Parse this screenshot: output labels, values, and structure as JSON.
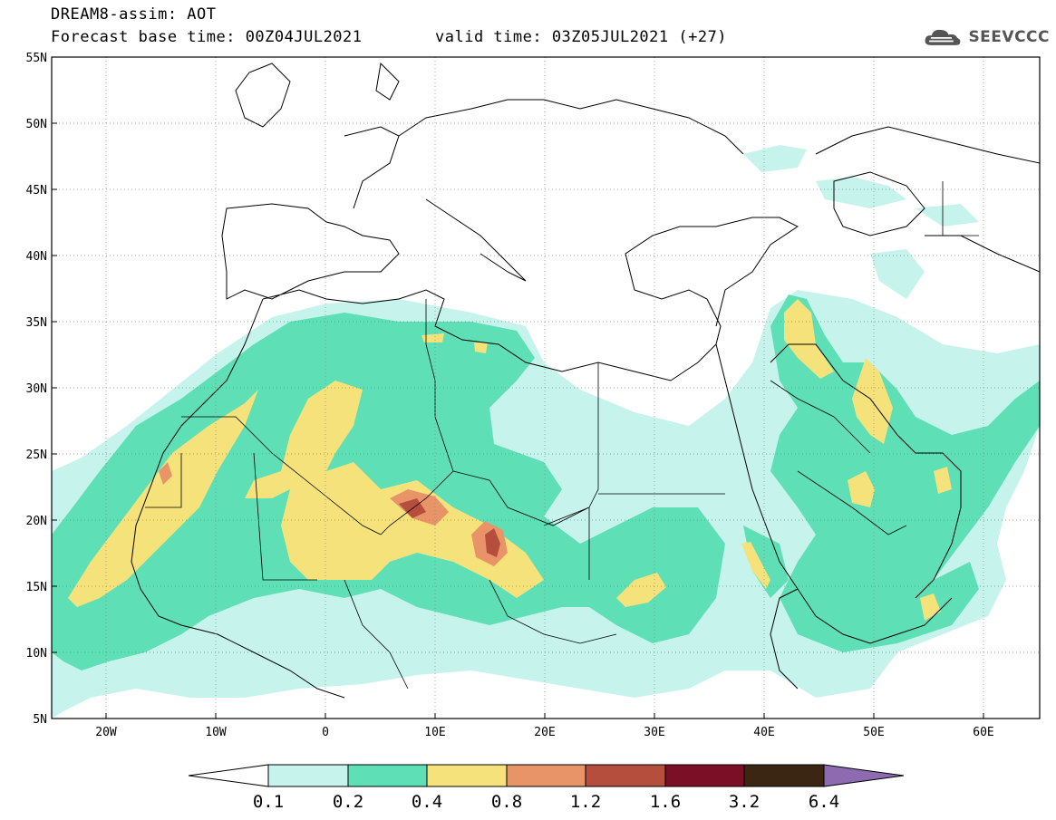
{
  "header": {
    "title": "DREAM8-assim: AOT",
    "base_time_line": "Forecast base time: 00Z04JUL2021",
    "valid_time_line": "valid time: 03Z05JUL2021 (+27)"
  },
  "logo": {
    "text": "SEEVCCC",
    "icon": "cloud-logo-icon"
  },
  "axes": {
    "lat_labels": [
      "55N",
      "50N",
      "45N",
      "40N",
      "35N",
      "30N",
      "25N",
      "20N",
      "15N",
      "10N",
      "5N"
    ],
    "lon_labels": [
      "20W",
      "10W",
      "0",
      "10E",
      "20E",
      "30E",
      "40E",
      "50E",
      "60E"
    ],
    "lon_range": [
      -25,
      65
    ],
    "lat_range": [
      5,
      55
    ]
  },
  "colorbar": {
    "labels": [
      "0.1",
      "0.2",
      "0.4",
      "0.8",
      "1.2",
      "1.6",
      "3.2",
      "6.4"
    ],
    "colors": [
      "#c6f3ec",
      "#5fdfb6",
      "#f5e27a",
      "#e89468",
      "#b54e3c",
      "#7a0f25",
      "#3b2613",
      "#8e6ab0"
    ],
    "below_color": "#ffffff"
  },
  "palette": {
    "land_border": "#000000",
    "grid": "#888888"
  }
}
